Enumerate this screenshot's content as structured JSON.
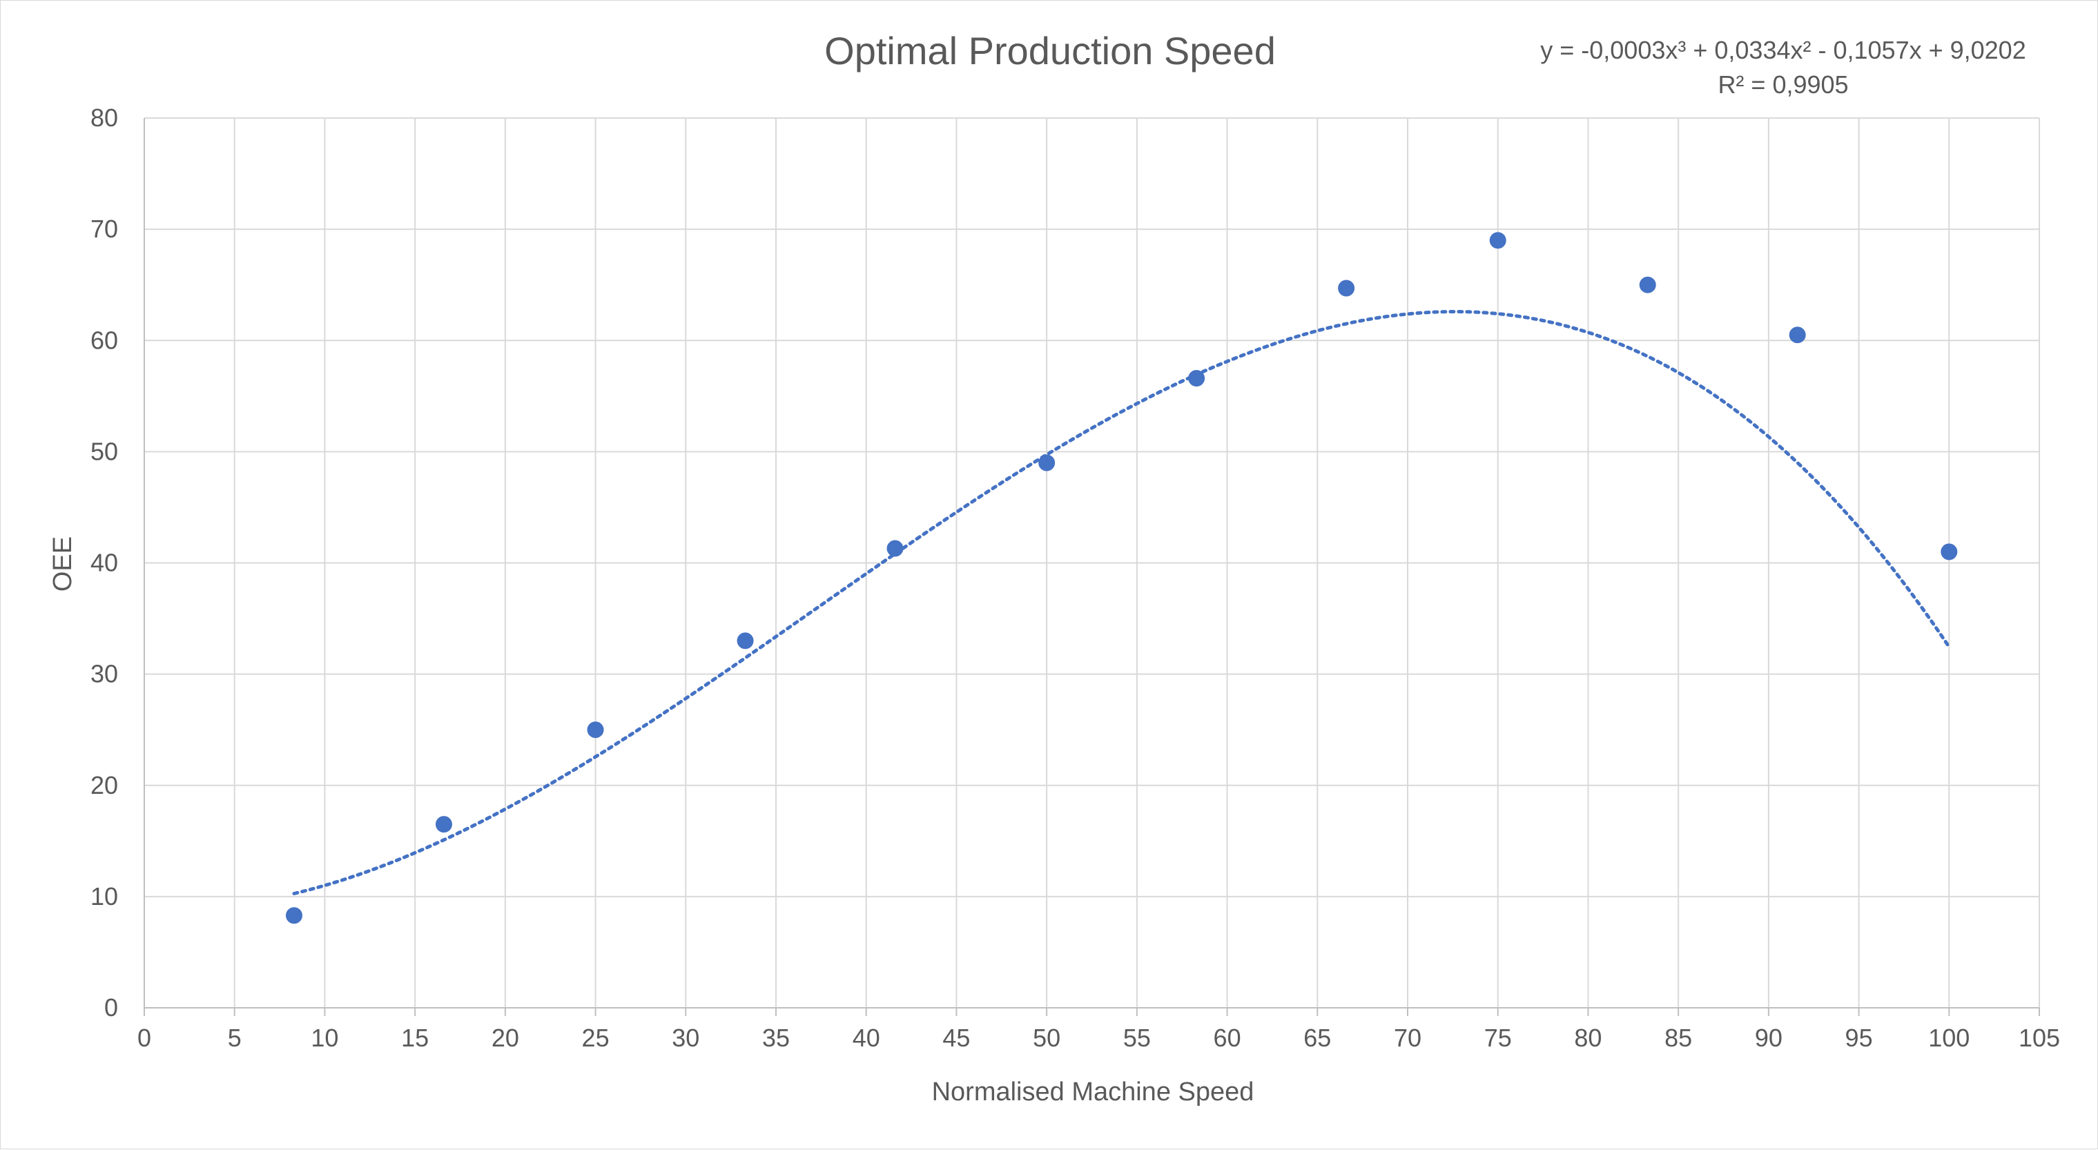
{
  "chart_data": {
    "type": "scatter",
    "title": "Optimal Production Speed",
    "xlabel": "Normalised Machine Speed",
    "ylabel": "OEE",
    "xlim": [
      0,
      105
    ],
    "ylim": [
      0,
      80
    ],
    "x_ticks": [
      "0",
      "5",
      "10",
      "15",
      "20",
      "25",
      "30",
      "35",
      "40",
      "45",
      "50",
      "55",
      "60",
      "65",
      "70",
      "75",
      "80",
      "85",
      "90",
      "95",
      "100",
      "105"
    ],
    "y_ticks": [
      "0",
      "10",
      "20",
      "30",
      "40",
      "50",
      "60",
      "70",
      "80"
    ],
    "grid": true,
    "legend": "none",
    "series": [
      {
        "x": [
          8.3,
          16.6,
          25,
          33.3,
          41.6,
          50,
          58.3,
          66.6,
          75,
          83.3,
          91.6,
          100
        ],
        "y": [
          8.3,
          16.5,
          25,
          33,
          41.3,
          49,
          56.6,
          64.7,
          69,
          65,
          60.5,
          41
        ]
      }
    ],
    "trendline": {
      "type": "polynomial",
      "order": 3,
      "coefficients": [
        -0.0003,
        0.0334,
        -0.1057,
        9.0202
      ],
      "equation_label": "y = -0,0003x³ + 0,0334x² - 0,1057x + 9,0202",
      "r2_label": "R² = 0,9905",
      "x_range": [
        8.3,
        100
      ],
      "style": "dotted"
    },
    "colors": {
      "marker": "#4472c4",
      "trendline": "#4472c4",
      "grid": "#d9d9d9",
      "axis": "#bfbfbf",
      "text": "#595959"
    }
  }
}
